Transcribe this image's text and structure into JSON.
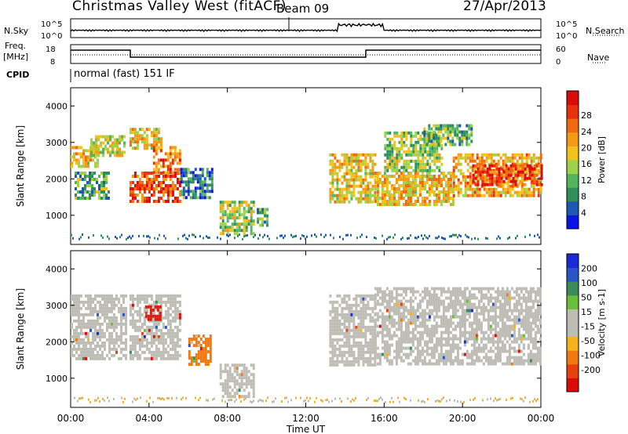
{
  "header": {
    "station": "Christmas Valley West (fitACF)",
    "beam": "Beam 09",
    "date": "27/Apr/2013"
  },
  "status_panels": {
    "noise": {
      "left_label": "N.Sky",
      "right_label": "N.Search",
      "left_ticks": [
        "10^5",
        "10^0"
      ],
      "right_ticks": [
        "10^5",
        "10^0"
      ]
    },
    "freq": {
      "left_label_line1": "Freq.",
      "left_label_line2": "[MHz]",
      "right_label": "Nave",
      "left_ticks": [
        "18",
        "8"
      ],
      "right_ticks": [
        "60",
        "0"
      ]
    },
    "cpid": {
      "label": "CPID",
      "value": "normal (fast) 151 IF"
    }
  },
  "chart_data": [
    {
      "type": "heatmap",
      "name": "power",
      "xlabel": "",
      "ylabel": "Slant Range [km]",
      "xlim": [
        0,
        24
      ],
      "ylim": [
        200,
        4500
      ],
      "x_tick_values": [
        0,
        4,
        8,
        12,
        16,
        20,
        24
      ],
      "y_ticks": [
        1000,
        2000,
        3000,
        4000
      ],
      "colorbar": {
        "label": "Power [dB]",
        "ticks": [
          "4",
          "8",
          "12",
          "16",
          "20",
          "24",
          "28"
        ],
        "colors": [
          "#0b14e8",
          "#1e58b4",
          "#2f8f5a",
          "#53b65e",
          "#9ed24a",
          "#f2c21c",
          "#f59a14",
          "#f06a10",
          "#e8300c",
          "#dd0a0a"
        ]
      },
      "echo_bands": [
        {
          "t": [
            0.0,
            1.4
          ],
          "r": [
            2300,
            2900
          ],
          "v": 0.6
        },
        {
          "t": [
            1.0,
            2.8
          ],
          "r": [
            2600,
            3200
          ],
          "v": 0.5
        },
        {
          "t": [
            0.2,
            2.0
          ],
          "r": [
            1500,
            2200
          ],
          "v": 0.3
        },
        {
          "t": [
            3.0,
            5.6
          ],
          "r": [
            1400,
            2200
          ],
          "v": 0.85
        },
        {
          "t": [
            3.0,
            4.6
          ],
          "r": [
            2800,
            3400
          ],
          "v": 0.6
        },
        {
          "t": [
            4.2,
            5.6
          ],
          "r": [
            2200,
            2900
          ],
          "v": 0.75
        },
        {
          "t": [
            5.6,
            7.2
          ],
          "r": [
            1500,
            2300
          ],
          "v": 0.2
        },
        {
          "t": [
            7.6,
            9.3
          ],
          "r": [
            500,
            1400
          ],
          "v": 0.45
        },
        {
          "t": [
            9.5,
            10.1
          ],
          "r": [
            700,
            1200
          ],
          "v": 0.35
        },
        {
          "t": [
            13.2,
            15.6
          ],
          "r": [
            1400,
            2700
          ],
          "v": 0.55
        },
        {
          "t": [
            15.5,
            19.5
          ],
          "r": [
            1300,
            2200
          ],
          "v": 0.6
        },
        {
          "t": [
            16.0,
            19.0
          ],
          "r": [
            2200,
            3300
          ],
          "v": 0.4
        },
        {
          "t": [
            19.5,
            24.0
          ],
          "r": [
            1500,
            2700
          ],
          "v": 0.65
        },
        {
          "t": [
            20.5,
            24.0
          ],
          "r": [
            1800,
            2400
          ],
          "v": 0.9
        },
        {
          "t": [
            18.0,
            20.5
          ],
          "r": [
            2900,
            3500
          ],
          "v": 0.35
        }
      ]
    },
    {
      "type": "heatmap",
      "name": "velocity",
      "xlabel": "Time UT",
      "ylabel": "Slant Range [km]",
      "xlim": [
        0,
        24
      ],
      "ylim": [
        200,
        4500
      ],
      "x_ticks": [
        "00:00",
        "04:00",
        "08:00",
        "12:00",
        "16:00",
        "20:00",
        "00:00"
      ],
      "x_tick_values": [
        0,
        4,
        8,
        12,
        16,
        20,
        24
      ],
      "y_ticks": [
        1000,
        2000,
        3000,
        4000
      ],
      "colorbar": {
        "label": "Velocity [m s-1]",
        "ticks": [
          "200",
          "100",
          "50",
          "15",
          "-15",
          "-50",
          "-100",
          "-200"
        ],
        "colors": [
          "#1a2ad8",
          "#2a55c8",
          "#3a8a5a",
          "#6abf3a",
          "#bdbdb5",
          "#bdbdb5",
          "#f5b21c",
          "#f07a10",
          "#e8400c",
          "#dd0a0a"
        ]
      },
      "echo_bands": [
        {
          "t": [
            0.0,
            2.8
          ],
          "r": [
            1500,
            3300
          ],
          "v": "ground"
        },
        {
          "t": [
            3.0,
            5.6
          ],
          "r": [
            1500,
            3300
          ],
          "v": "ground"
        },
        {
          "t": [
            3.8,
            4.6
          ],
          "r": [
            2600,
            3000
          ],
          "v": "red"
        },
        {
          "t": [
            6.0,
            7.2
          ],
          "r": [
            1400,
            2200
          ],
          "v": "orange"
        },
        {
          "t": [
            7.6,
            9.3
          ],
          "r": [
            500,
            1400
          ],
          "v": "ground"
        },
        {
          "t": [
            13.2,
            15.6
          ],
          "r": [
            1400,
            3300
          ],
          "v": "ground"
        },
        {
          "t": [
            15.5,
            24.0
          ],
          "r": [
            1400,
            3500
          ],
          "v": "ground"
        }
      ]
    }
  ]
}
